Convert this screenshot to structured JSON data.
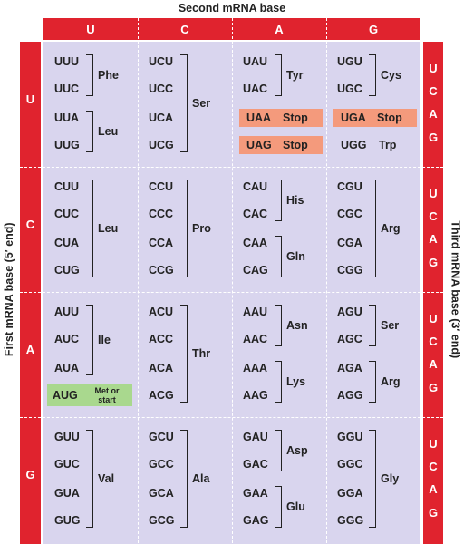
{
  "title_top": "Second mRNA base",
  "title_left": "First mRNA base (5′ end)",
  "title_right": "Third mRNA base (3′ end)",
  "second_bases": [
    "U",
    "C",
    "A",
    "G"
  ],
  "third_bases": [
    "U",
    "C",
    "A",
    "G"
  ],
  "rows": [
    {
      "base": "U",
      "cells": [
        [
          {
            "codons": [
              "UUU",
              "UUC"
            ],
            "amino_acid": "Phe"
          },
          {
            "codons": [
              "UUA",
              "UUG"
            ],
            "amino_acid": "Leu"
          }
        ],
        [
          {
            "codons": [
              "UCU",
              "UCC",
              "UCA",
              "UCG"
            ],
            "amino_acid": "Ser"
          }
        ],
        [
          {
            "codons": [
              "UAU",
              "UAC"
            ],
            "amino_acid": "Tyr"
          },
          {
            "codons": [
              "UAA"
            ],
            "amino_acid": "Stop",
            "highlight": "#f49a7c"
          },
          {
            "codons": [
              "UAG"
            ],
            "amino_acid": "Stop",
            "highlight": "#f49a7c"
          }
        ],
        [
          {
            "codons": [
              "UGU",
              "UGC"
            ],
            "amino_acid": "Cys"
          },
          {
            "codons": [
              "UGA"
            ],
            "amino_acid": "Stop",
            "highlight": "#f49a7c"
          },
          {
            "codons": [
              "UGG"
            ],
            "amino_acid": "Trp"
          }
        ]
      ]
    },
    {
      "base": "C",
      "cells": [
        [
          {
            "codons": [
              "CUU",
              "CUC",
              "CUA",
              "CUG"
            ],
            "amino_acid": "Leu"
          }
        ],
        [
          {
            "codons": [
              "CCU",
              "CCC",
              "CCA",
              "CCG"
            ],
            "amino_acid": "Pro"
          }
        ],
        [
          {
            "codons": [
              "CAU",
              "CAC"
            ],
            "amino_acid": "His"
          },
          {
            "codons": [
              "CAA",
              "CAG"
            ],
            "amino_acid": "Gln"
          }
        ],
        [
          {
            "codons": [
              "CGU",
              "CGC",
              "CGA",
              "CGG"
            ],
            "amino_acid": "Arg"
          }
        ]
      ]
    },
    {
      "base": "A",
      "cells": [
        [
          {
            "codons": [
              "AUU",
              "AUC",
              "AUA"
            ],
            "amino_acid": "Ile"
          },
          {
            "codons": [
              "AUG"
            ],
            "amino_acid": "Met or start",
            "highlight": "#a9d88e"
          }
        ],
        [
          {
            "codons": [
              "ACU",
              "ACC",
              "ACA",
              "ACG"
            ],
            "amino_acid": "Thr"
          }
        ],
        [
          {
            "codons": [
              "AAU",
              "AAC"
            ],
            "amino_acid": "Asn"
          },
          {
            "codons": [
              "AAA",
              "AAG"
            ],
            "amino_acid": "Lys"
          }
        ],
        [
          {
            "codons": [
              "AGU",
              "AGC"
            ],
            "amino_acid": "Ser"
          },
          {
            "codons": [
              "AGA",
              "AGG"
            ],
            "amino_acid": "Arg"
          }
        ]
      ]
    },
    {
      "base": "G",
      "cells": [
        [
          {
            "codons": [
              "GUU",
              "GUC",
              "GUA",
              "GUG"
            ],
            "amino_acid": "Val"
          }
        ],
        [
          {
            "codons": [
              "GCU",
              "GCC",
              "GCA",
              "GCG"
            ],
            "amino_acid": "Ala"
          }
        ],
        [
          {
            "codons": [
              "GAU",
              "GAC"
            ],
            "amino_acid": "Asp"
          },
          {
            "codons": [
              "GAA",
              "GAG"
            ],
            "amino_acid": "Glu"
          }
        ],
        [
          {
            "codons": [
              "GGU",
              "GGC",
              "GGA",
              "GGG"
            ],
            "amino_acid": "Gly"
          }
        ]
      ]
    }
  ]
}
